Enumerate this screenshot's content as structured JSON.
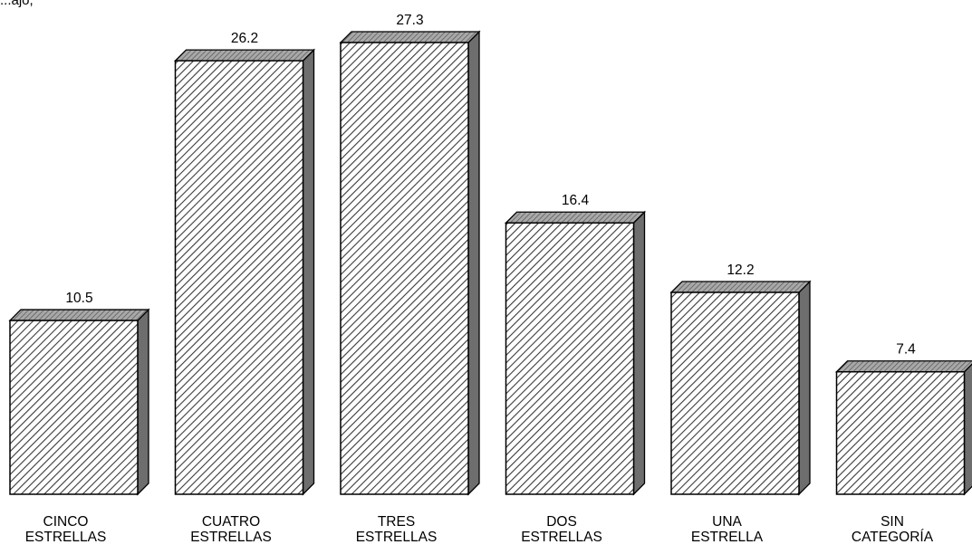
{
  "header_fragment": "...ajo,",
  "chart_data": {
    "type": "bar",
    "title": "",
    "xlabel": "",
    "ylabel": "",
    "ylim": [
      0,
      27.3
    ],
    "grid": false,
    "categories": [
      [
        "CINCO",
        "ESTRELLAS"
      ],
      [
        "CUATRO",
        "ESTRELLAS"
      ],
      [
        "TRES",
        "ESTRELLAS"
      ],
      [
        "DOS",
        "ESTRELLAS"
      ],
      [
        "UNA",
        "ESTRELLA"
      ],
      [
        "SIN",
        "CATEGORÍA"
      ]
    ],
    "values": [
      10.5,
      26.2,
      27.3,
      16.4,
      12.2,
      7.4
    ],
    "value_labels": [
      "10.5",
      "26.2",
      "27.3",
      "16.4",
      "12.2",
      "7.4"
    ],
    "style": {
      "bar_fill": "hatched-diagonal",
      "top_color": "#8c8c8c",
      "side_color": "#6e6e6e",
      "stroke": "#000000"
    }
  }
}
